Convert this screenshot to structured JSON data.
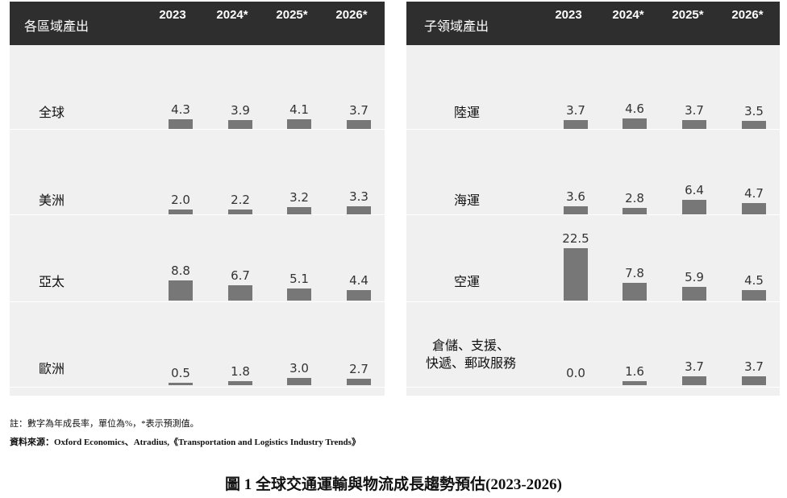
{
  "years": [
    "2023",
    "2024*",
    "2025*",
    "2026*"
  ],
  "left_panel": {
    "title": "各區域產出"
  },
  "right_panel": {
    "title": "子領域產出"
  },
  "notes": {
    "line1": "註：數字為年成長率，單位為%，*表示預測值。",
    "line2": "資料來源：Oxford Economics、Atradius,《Transportation and Logistics Industry Trends》"
  },
  "caption": "圖 1  全球交通運輸與物流成長趨勢預估(2023-2026)",
  "colors": {
    "bar": "#777777",
    "header": "#2e2e2e",
    "panel": "#f0f0f0"
  },
  "chart_data": [
    {
      "type": "bar",
      "title": "各區域產出",
      "categories": [
        "2023",
        "2024*",
        "2025*",
        "2026*"
      ],
      "series": [
        {
          "name": "全球",
          "values": [
            4.3,
            3.9,
            4.1,
            3.7
          ],
          "labels": [
            "4.3",
            "3.9",
            "4.1",
            "3.7"
          ]
        },
        {
          "name": "美洲",
          "values": [
            2.0,
            2.2,
            3.2,
            3.3
          ],
          "labels": [
            "2.0",
            "2.2",
            "3.2",
            "3.3"
          ]
        },
        {
          "name": "亞太",
          "values": [
            8.8,
            6.7,
            5.1,
            4.4
          ],
          "labels": [
            "8.8",
            "6.7",
            "5.1",
            "4.4"
          ]
        },
        {
          "name": "歐洲",
          "values": [
            0.5,
            1.8,
            3.0,
            2.7
          ],
          "labels": [
            "0.5",
            "1.8",
            "3.0",
            "2.7"
          ]
        }
      ]
    },
    {
      "type": "bar",
      "title": "子領域產出",
      "categories": [
        "2023",
        "2024*",
        "2025*",
        "2026*"
      ],
      "series": [
        {
          "name": "陸運",
          "values": [
            3.7,
            4.6,
            3.7,
            3.5
          ],
          "labels": [
            "3.7",
            "4.6",
            "3.7",
            "3.5"
          ]
        },
        {
          "name": "海運",
          "values": [
            3.6,
            2.8,
            6.4,
            4.7
          ],
          "labels": [
            "3.6",
            "2.8",
            "6.4",
            "4.7"
          ]
        },
        {
          "name": "空運",
          "values": [
            22.5,
            7.8,
            5.9,
            4.5
          ],
          "labels": [
            "22.5",
            "7.8",
            "5.9",
            "4.5"
          ]
        },
        {
          "name": "倉儲、支援、快遞、郵政服務",
          "display_lines": [
            "倉儲、支援、",
            "快遞、郵政服務"
          ],
          "values": [
            0.0,
            1.6,
            3.7,
            3.7
          ],
          "labels": [
            "0.0",
            "1.6",
            "3.7",
            "3.7"
          ]
        }
      ]
    }
  ]
}
